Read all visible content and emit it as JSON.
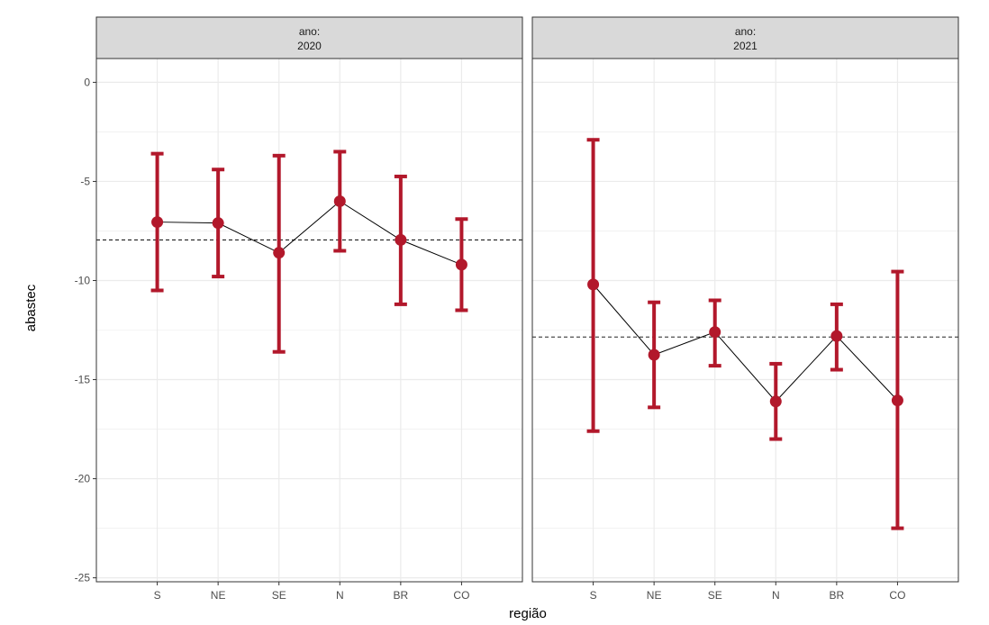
{
  "chart_data": {
    "type": "errorbar-line",
    "facet_var": "ano:",
    "xlabel": "região",
    "ylabel": "abastec",
    "categories": [
      "S",
      "NE",
      "SE",
      "N",
      "BR",
      "CO"
    ],
    "ylim": [
      -25.2,
      1.2
    ],
    "yticks": [
      0,
      -5,
      -10,
      -15,
      -20,
      -25
    ],
    "ytick_labels": [
      "0",
      "-5",
      "-10",
      "-15",
      "-20",
      "-25"
    ],
    "grid": true,
    "colors": {
      "errorbar": "#b2182b",
      "point": "#b2182b",
      "line": "#000000",
      "reference": "#000000",
      "strip_bg": "#d9d9d9",
      "grid": "#ebebeb"
    },
    "facets": [
      {
        "label_prefix": "ano:",
        "label_year": "2020",
        "reference": -7.95,
        "estimates": [
          -7.05,
          -7.1,
          -8.6,
          -6.0,
          -7.95,
          -9.2
        ],
        "lower": [
          -10.5,
          -9.8,
          -13.6,
          -8.5,
          -11.2,
          -11.5
        ],
        "upper": [
          -3.6,
          -4.4,
          -3.7,
          -3.5,
          -4.75,
          -6.9
        ]
      },
      {
        "label_prefix": "ano:",
        "label_year": "2021",
        "reference": -12.85,
        "estimates": [
          -10.2,
          -13.75,
          -12.6,
          -16.1,
          -12.8,
          -16.05
        ],
        "lower": [
          -17.6,
          -16.4,
          -14.3,
          -18.0,
          -14.5,
          -22.5
        ],
        "upper": [
          -2.9,
          -11.1,
          -11.0,
          -14.2,
          -11.2,
          -9.55
        ]
      }
    ]
  }
}
